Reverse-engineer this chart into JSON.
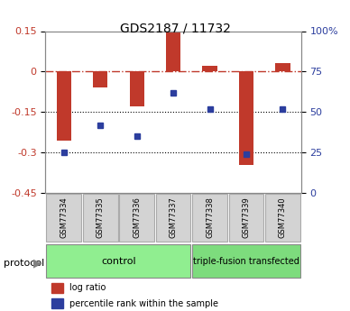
{
  "title": "GDS2187 / 11732",
  "samples": [
    "GSM77334",
    "GSM77335",
    "GSM77336",
    "GSM77337",
    "GSM77338",
    "GSM77339",
    "GSM77340"
  ],
  "log_ratio": [
    -0.255,
    -0.06,
    -0.13,
    0.145,
    0.02,
    -0.345,
    0.03
  ],
  "percentile_rank": [
    25,
    42,
    35,
    62,
    52,
    24,
    52
  ],
  "ylim_left": [
    -0.45,
    0.15
  ],
  "ylim_right": [
    0,
    100
  ],
  "yticks_left": [
    0.15,
    0.0,
    -0.15,
    -0.3,
    -0.45
  ],
  "ytick_labels_left": [
    "0.15",
    "0",
    "-0.15",
    "-0.3",
    "-0.45"
  ],
  "yticks_right": [
    100,
    75,
    50,
    25,
    0
  ],
  "ytick_labels_right": [
    "100%",
    "75",
    "50",
    "25",
    "0"
  ],
  "bar_color": "#c0392b",
  "dot_color": "#2c3e9e",
  "bar_width": 0.4,
  "ctrl_color": "#90ee90",
  "tf_color": "#7ddc7d",
  "ctrl_label": "control",
  "tf_label": "triple-fusion transfected",
  "protocol_label": "protocol",
  "legend_label_bar": "log ratio",
  "legend_label_dot": "percentile rank within the sample",
  "bg_color": "#ffffff",
  "plot_bg": "#ffffff",
  "border_color": "#888888"
}
